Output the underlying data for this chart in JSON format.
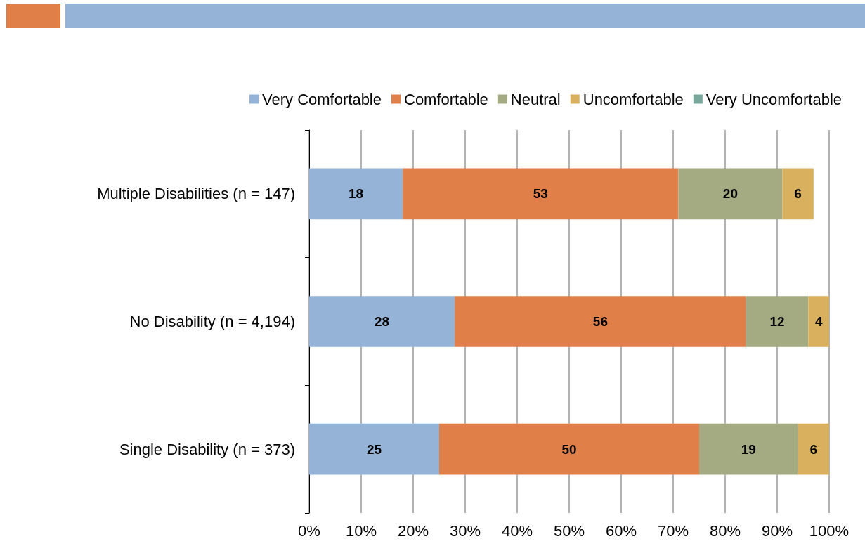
{
  "chart_data": {
    "type": "bar",
    "orientation": "horizontal",
    "stacked": true,
    "data_labels": true,
    "grid": "x",
    "legend": "top right",
    "categories": [
      "Multiple Disabilities (n = 147)",
      "No Disability (n = 4,194)",
      "Single Disability (n = 373)"
    ],
    "xlim": [
      0,
      100
    ],
    "xticks": [
      {
        "value": 0,
        "label": "0%"
      },
      {
        "value": 10,
        "label": "10%"
      },
      {
        "value": 20,
        "label": "20%"
      },
      {
        "value": 30,
        "label": "30%"
      },
      {
        "value": 40,
        "label": "40%"
      },
      {
        "value": 50,
        "label": "50%"
      },
      {
        "value": 60,
        "label": "60%"
      },
      {
        "value": 70,
        "label": "70%"
      },
      {
        "value": 80,
        "label": "80%"
      },
      {
        "value": 90,
        "label": "90%"
      },
      {
        "value": 100,
        "label": "100%"
      }
    ],
    "series": [
      {
        "name": "Very Comfortable",
        "color": "#95b3d7",
        "values": [
          18,
          28,
          25
        ]
      },
      {
        "name": "Comfortable",
        "color": "#e07f48",
        "values": [
          53,
          56,
          50
        ]
      },
      {
        "name": "Neutral",
        "color": "#a4aa82",
        "values": [
          20,
          12,
          19
        ]
      },
      {
        "name": "Uncomfortable",
        "color": "#d9b05e",
        "values": [
          6,
          4,
          6
        ]
      },
      {
        "name": "Very Uncomfortable",
        "color": "#77a79a",
        "values": [
          null,
          null,
          null
        ]
      }
    ]
  }
}
